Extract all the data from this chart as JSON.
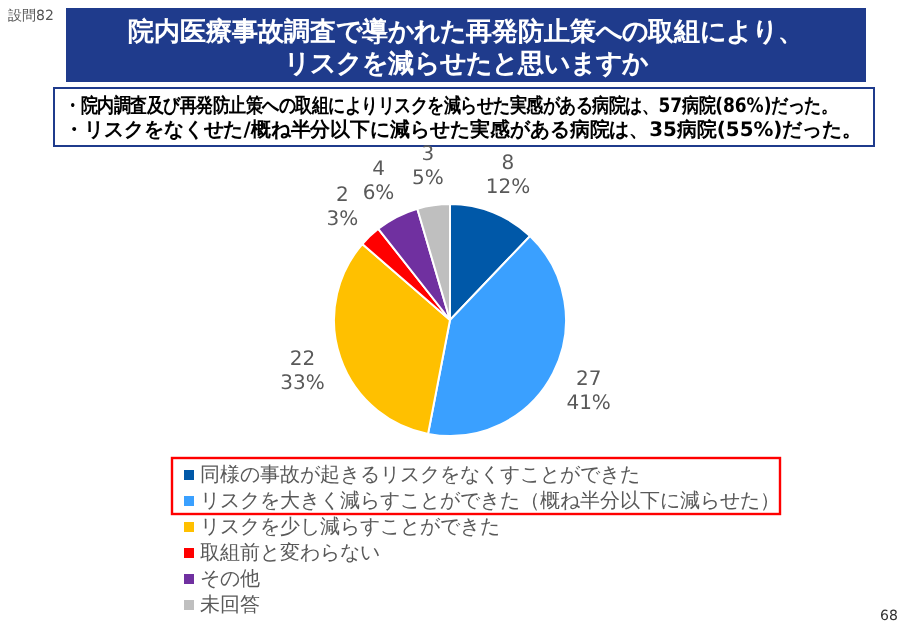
{
  "chart_data": {
    "type": "pie",
    "title": "院内医療事故調査で導かれた再発防止策への取組により、リスクを減らせたと思いますか",
    "categories": [
      "同様の事故が起きるリスクをなくすことができた",
      "リスクを大きく減らすことができた（概ね半分以下に減らせた）",
      "リスクを少し減らすことができた",
      "取組前と変わらない",
      "その他",
      "未回答"
    ],
    "values": [
      8,
      27,
      22,
      2,
      4,
      3
    ],
    "colors": [
      "#0058a8",
      "#3aa0ff",
      "#ffc000",
      "#ff0000",
      "#7030a0",
      "#bfbfbf"
    ],
    "value_labels": [
      "8\n12%",
      "27\n41%",
      "22\n33%",
      "2\n3%",
      "4\n6%",
      "3\n5%"
    ],
    "legend": "bottom",
    "annotations": [
      "設問82",
      "・院内調査及び再発防止策への取組によりリスクを減らせた実感がある病院は、57病院(86%)だった。",
      "・リスクをなくせた/概ね半分以下に減らせた実感がある病院は、35病院(55%)だった。",
      "68"
    ]
  }
}
